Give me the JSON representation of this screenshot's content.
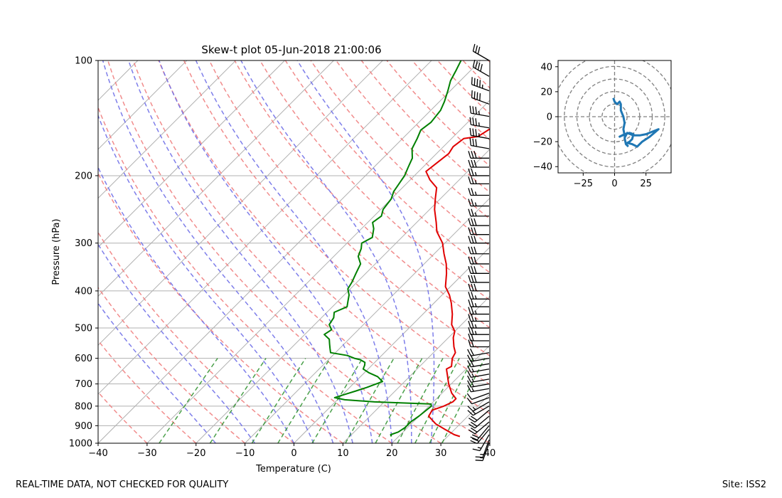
{
  "chart_data": [
    {
      "type": "line",
      "subtype": "skew-t",
      "title": "Skew-t plot 05-Jun-2018 21:00:06",
      "xlabel": "Temperature (C)",
      "ylabel": "Pressure (hPa)",
      "xlim": [
        -40,
        40
      ],
      "ylim": [
        1000,
        100
      ],
      "y_scale": "log",
      "x_ticks": [
        -40,
        -30,
        -20,
        -10,
        0,
        10,
        20,
        30,
        40
      ],
      "y_ticks": [
        100,
        200,
        300,
        400,
        500,
        600,
        700,
        800,
        900,
        1000
      ],
      "grid": true,
      "background_lines": {
        "isotherm_color": "#b0b0b0",
        "dry_adiabat_color": "#f08080",
        "moist_adiabat_color": "#7070e8",
        "mixing_ratio_color": "#2a8f2a"
      },
      "series": [
        {
          "color": "#e00000",
          "points": [
            [
              32.5,
              960
            ],
            [
              31,
              950
            ],
            [
              28,
              920
            ],
            [
              25,
              890
            ],
            [
              22,
              850
            ],
            [
              21.5,
              820
            ],
            [
              23,
              800
            ],
            [
              24,
              780
            ],
            [
              24,
              765
            ],
            [
              22,
              740
            ],
            [
              19.5,
              700
            ],
            [
              17.5,
              665
            ],
            [
              16,
              640
            ],
            [
              16.5,
              630
            ],
            [
              15,
              600
            ],
            [
              14.5,
              580
            ],
            [
              13,
              560
            ],
            [
              11,
              530
            ],
            [
              10,
              510
            ],
            [
              8,
              490
            ],
            [
              6,
              460
            ],
            [
              3.5,
              430
            ],
            [
              1.5,
              410
            ],
            [
              -1,
              390
            ],
            [
              -3.5,
              360
            ],
            [
              -5.5,
              340
            ],
            [
              -8,
              320
            ],
            [
              -10.5,
              300
            ],
            [
              -14,
              280
            ],
            [
              -16,
              265
            ],
            [
              -19,
              245
            ],
            [
              -21,
              230
            ],
            [
              -23,
              215
            ],
            [
              -26,
              205
            ],
            [
              -28.5,
              195
            ],
            [
              -28,
              185
            ],
            [
              -27.5,
              175
            ],
            [
              -28,
              168
            ],
            [
              -27.5,
              160
            ],
            [
              -25,
              158
            ],
            [
              -24,
              150
            ],
            [
              -24,
              145
            ],
            [
              -25,
              138
            ],
            [
              -26,
              130
            ],
            [
              -28,
              122
            ],
            [
              -29,
              115
            ],
            [
              -30,
              110
            ],
            [
              -32,
              104
            ],
            [
              -33,
              100
            ]
          ]
        },
        {
          "color": "#008000",
          "points": [
            [
              18.5,
              960
            ],
            [
              18,
              950
            ],
            [
              19,
              935
            ],
            [
              19.5,
              910
            ],
            [
              19.5,
              880
            ],
            [
              20,
              850
            ],
            [
              20.5,
              800
            ],
            [
              20,
              790
            ],
            [
              8,
              780
            ],
            [
              1.5,
              770
            ],
            [
              -1,
              760
            ],
            [
              0.5,
              745
            ],
            [
              2,
              730
            ],
            [
              3.5,
              715
            ],
            [
              5.5,
              690
            ],
            [
              3.5,
              670
            ],
            [
              1,
              655
            ],
            [
              -1,
              640
            ],
            [
              -1.5,
              625
            ],
            [
              -2,
              615
            ],
            [
              -3.5,
              605
            ],
            [
              -5,
              600
            ],
            [
              -7,
              590
            ],
            [
              -11,
              580
            ],
            [
              -12,
              565
            ],
            [
              -13,
              550
            ],
            [
              -14,
              535
            ],
            [
              -16,
              520
            ],
            [
              -15.5,
              505
            ],
            [
              -17,
              490
            ],
            [
              -17.5,
              470
            ],
            [
              -18.5,
              455
            ],
            [
              -17,
              440
            ],
            [
              -18,
              425
            ],
            [
              -19,
              410
            ],
            [
              -20.5,
              395
            ],
            [
              -21,
              380
            ],
            [
              -22,
              360
            ],
            [
              -23,
              340
            ],
            [
              -25,
              325
            ],
            [
              -26,
              310
            ],
            [
              -27,
              300
            ],
            [
              -26,
              290
            ],
            [
              -27.5,
              275
            ],
            [
              -29,
              265
            ],
            [
              -28.5,
              255
            ],
            [
              -29.5,
              245
            ],
            [
              -30,
              230
            ],
            [
              -31,
              220
            ],
            [
              -31.5,
              210
            ],
            [
              -32,
              200
            ],
            [
              -33,
              190
            ],
            [
              -34,
              180
            ],
            [
              -36,
              170
            ],
            [
              -37,
              160
            ],
            [
              -38,
              152
            ],
            [
              -37.5,
              145
            ],
            [
              -38,
              135
            ],
            [
              -39,
              128
            ],
            [
              -40.5,
              120
            ],
            [
              -42,
              113
            ],
            [
              -43,
              106
            ],
            [
              -44,
              100
            ]
          ]
        }
      ],
      "wind_barbs": {
        "color": "#000000",
        "pressures": [
          1000,
          980,
          950,
          920,
          900,
          880,
          850,
          820,
          800,
          780,
          760,
          740,
          720,
          700,
          680,
          660,
          640,
          620,
          600,
          580,
          560,
          540,
          520,
          500,
          480,
          460,
          440,
          420,
          400,
          380,
          360,
          340,
          320,
          300,
          285,
          270,
          255,
          240,
          225,
          210,
          200,
          190,
          180,
          170,
          160,
          150,
          140,
          130,
          120,
          110,
          100
        ],
        "speed_kt": [
          15,
          15,
          15,
          20,
          20,
          20,
          20,
          20,
          15,
          15,
          10,
          10,
          15,
          15,
          15,
          15,
          15,
          20,
          20,
          20,
          20,
          20,
          25,
          25,
          25,
          25,
          25,
          25,
          30,
          30,
          30,
          30,
          30,
          30,
          30,
          30,
          25,
          25,
          25,
          25,
          25,
          30,
          30,
          30,
          35,
          35,
          35,
          40,
          45,
          40,
          30
        ],
        "direction_deg": [
          200,
          200,
          210,
          220,
          220,
          230,
          230,
          230,
          240,
          240,
          250,
          250,
          260,
          260,
          260,
          260,
          260,
          260,
          260,
          260,
          270,
          270,
          270,
          270,
          270,
          270,
          270,
          270,
          270,
          270,
          270,
          270,
          270,
          270,
          270,
          270,
          270,
          270,
          270,
          270,
          270,
          270,
          270,
          280,
          280,
          280,
          280,
          290,
          290,
          300,
          300
        ]
      }
    },
    {
      "type": "line",
      "subtype": "hodograph",
      "xlim": [
        -45,
        45
      ],
      "ylim": [
        -45,
        45
      ],
      "x_ticks": [
        -25,
        0,
        25
      ],
      "y_ticks": [
        -40,
        -20,
        0,
        20,
        40
      ],
      "rings": [
        10,
        20,
        30,
        40,
        50
      ],
      "color": "#1f77b4",
      "points": [
        [
          -1,
          15
        ],
        [
          0,
          12
        ],
        [
          2,
          10
        ],
        [
          4,
          12
        ],
        [
          5,
          10
        ],
        [
          5,
          5
        ],
        [
          7,
          0
        ],
        [
          8,
          -5
        ],
        [
          7,
          -10
        ],
        [
          8,
          -15
        ],
        [
          6,
          -15
        ],
        [
          4,
          -16
        ],
        [
          8,
          -14
        ],
        [
          12,
          -13
        ],
        [
          15,
          -14
        ],
        [
          14,
          -18
        ],
        [
          12,
          -20
        ],
        [
          10,
          -21
        ],
        [
          14,
          -22
        ],
        [
          18,
          -24
        ],
        [
          22,
          -20
        ],
        [
          28,
          -16
        ],
        [
          35,
          -10
        ],
        [
          30,
          -12
        ],
        [
          25,
          -14
        ],
        [
          20,
          -15
        ],
        [
          15,
          -15
        ],
        [
          10,
          -13
        ],
        [
          8,
          -17
        ],
        [
          9,
          -22
        ],
        [
          11,
          -24
        ]
      ]
    }
  ],
  "footer": {
    "left": "REAL-TIME DATA, NOT CHECKED FOR QUALITY",
    "right": "Site: ISS2"
  }
}
